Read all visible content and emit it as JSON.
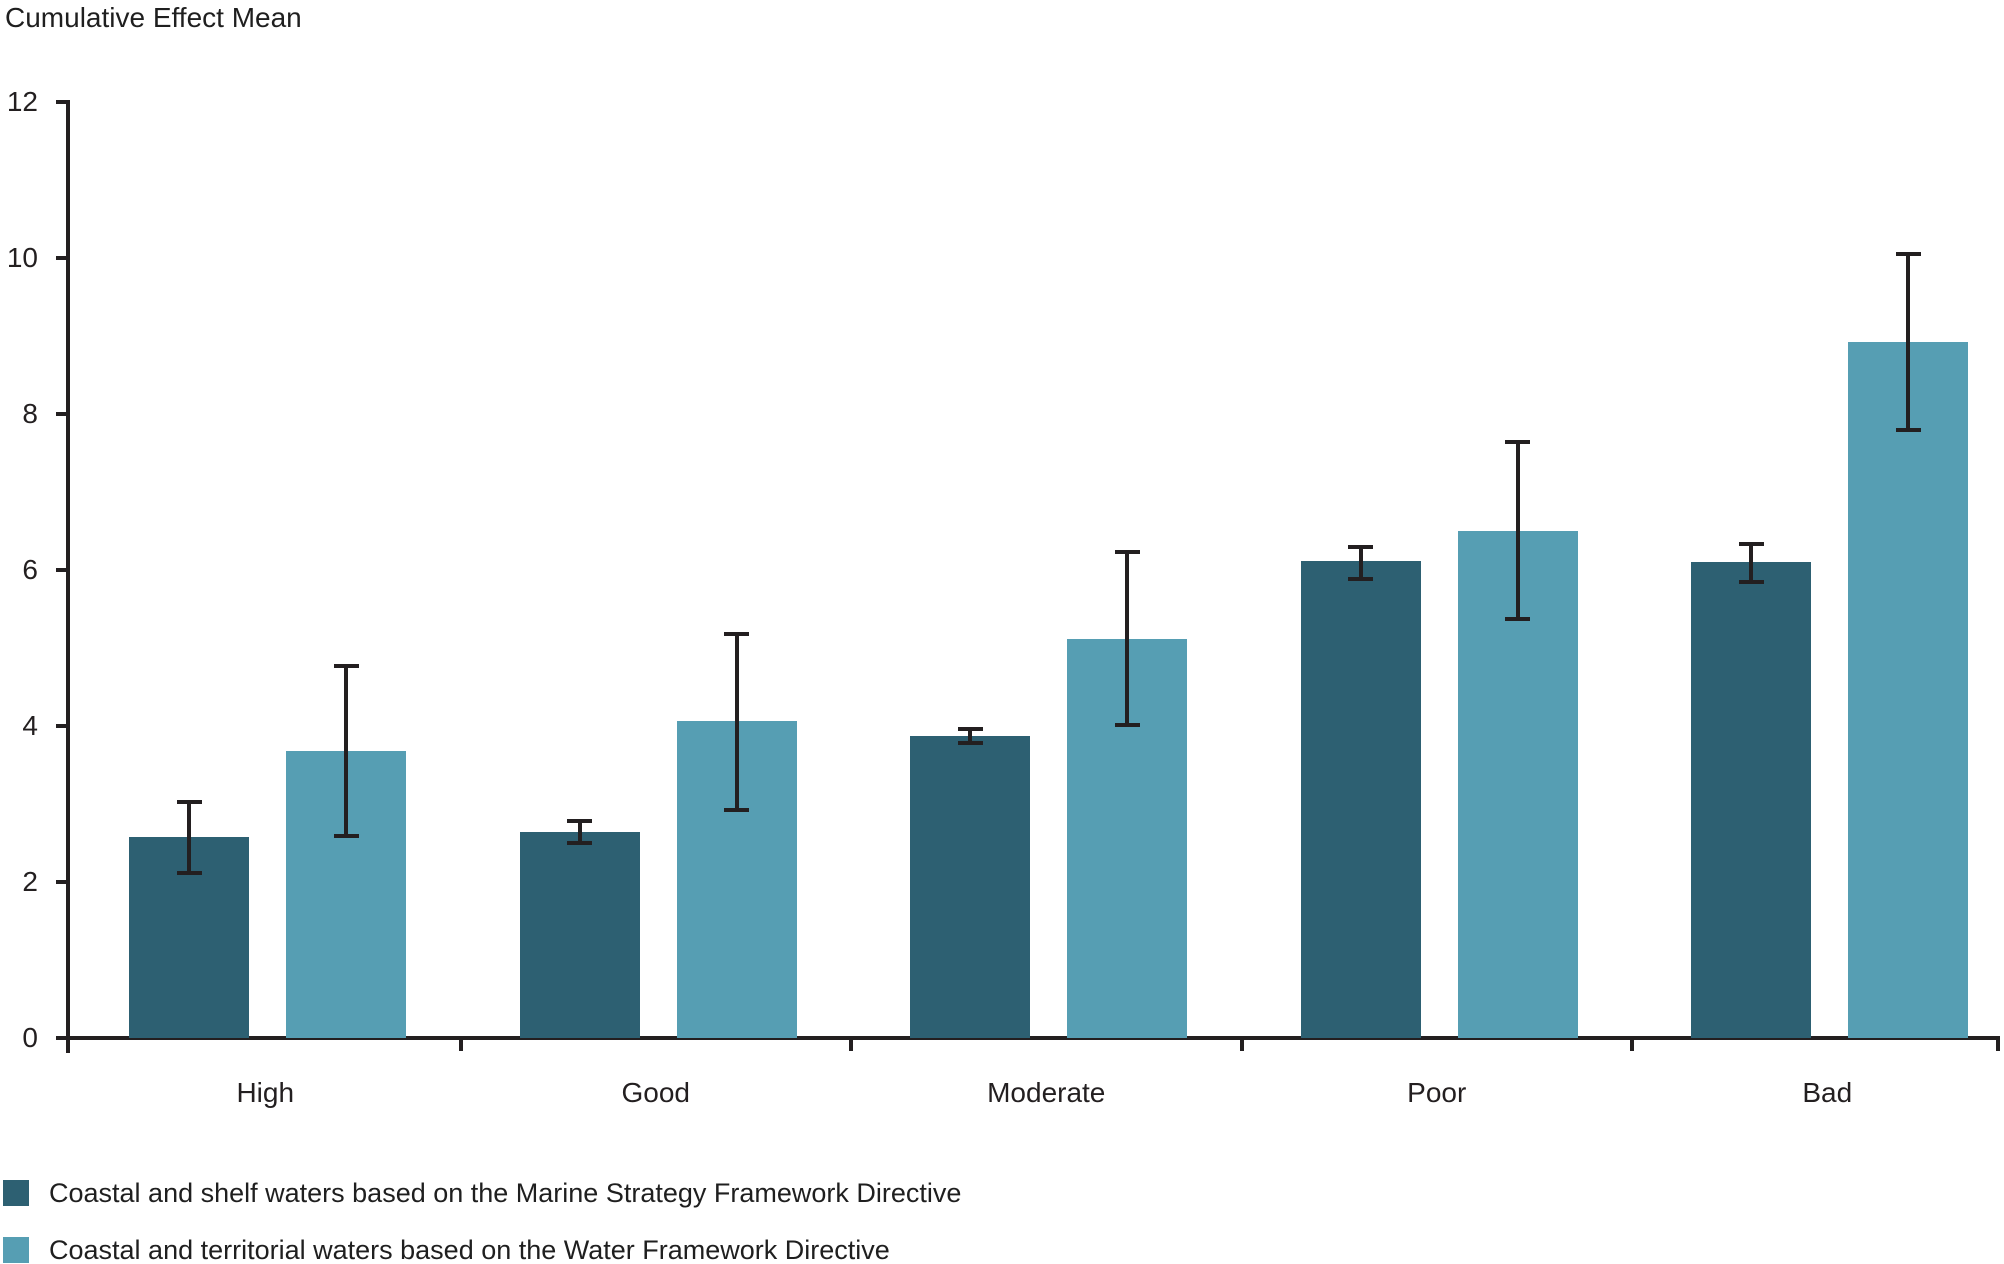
{
  "chart_data": {
    "type": "bar",
    "title": "Cumulative Effect Mean",
    "categories": [
      "High",
      "Good",
      "Moderate",
      "Poor",
      "Bad"
    ],
    "series": [
      {
        "name": "Coastal and shelf waters based on the Marine Strategy Framework Directive",
        "key": "msfd",
        "color": "#2d6072",
        "values": [
          2.58,
          2.64,
          3.87,
          6.11,
          6.1
        ],
        "error_low": [
          2.12,
          2.5,
          3.78,
          5.89,
          5.85
        ],
        "error_high": [
          3.03,
          2.78,
          3.96,
          6.3,
          6.33
        ]
      },
      {
        "name": "Coastal and territorial waters based on the Water Framework Directive",
        "key": "wfd",
        "color": "#569eb3",
        "values": [
          3.68,
          4.06,
          5.12,
          6.5,
          8.92
        ],
        "error_low": [
          2.59,
          2.92,
          4.01,
          5.37,
          7.79
        ],
        "error_high": [
          4.77,
          5.18,
          6.23,
          7.64,
          10.05
        ]
      }
    ],
    "xlabel": "",
    "ylabel": "Cumulative Effect Mean",
    "ylim": [
      0,
      12
    ],
    "yticks": [
      0,
      2,
      4,
      6,
      8,
      10,
      12
    ],
    "grid": false,
    "error_bars": true,
    "legend_position": "bottom-left",
    "axis_color": "#231f20",
    "background_color": "#ffffff"
  }
}
